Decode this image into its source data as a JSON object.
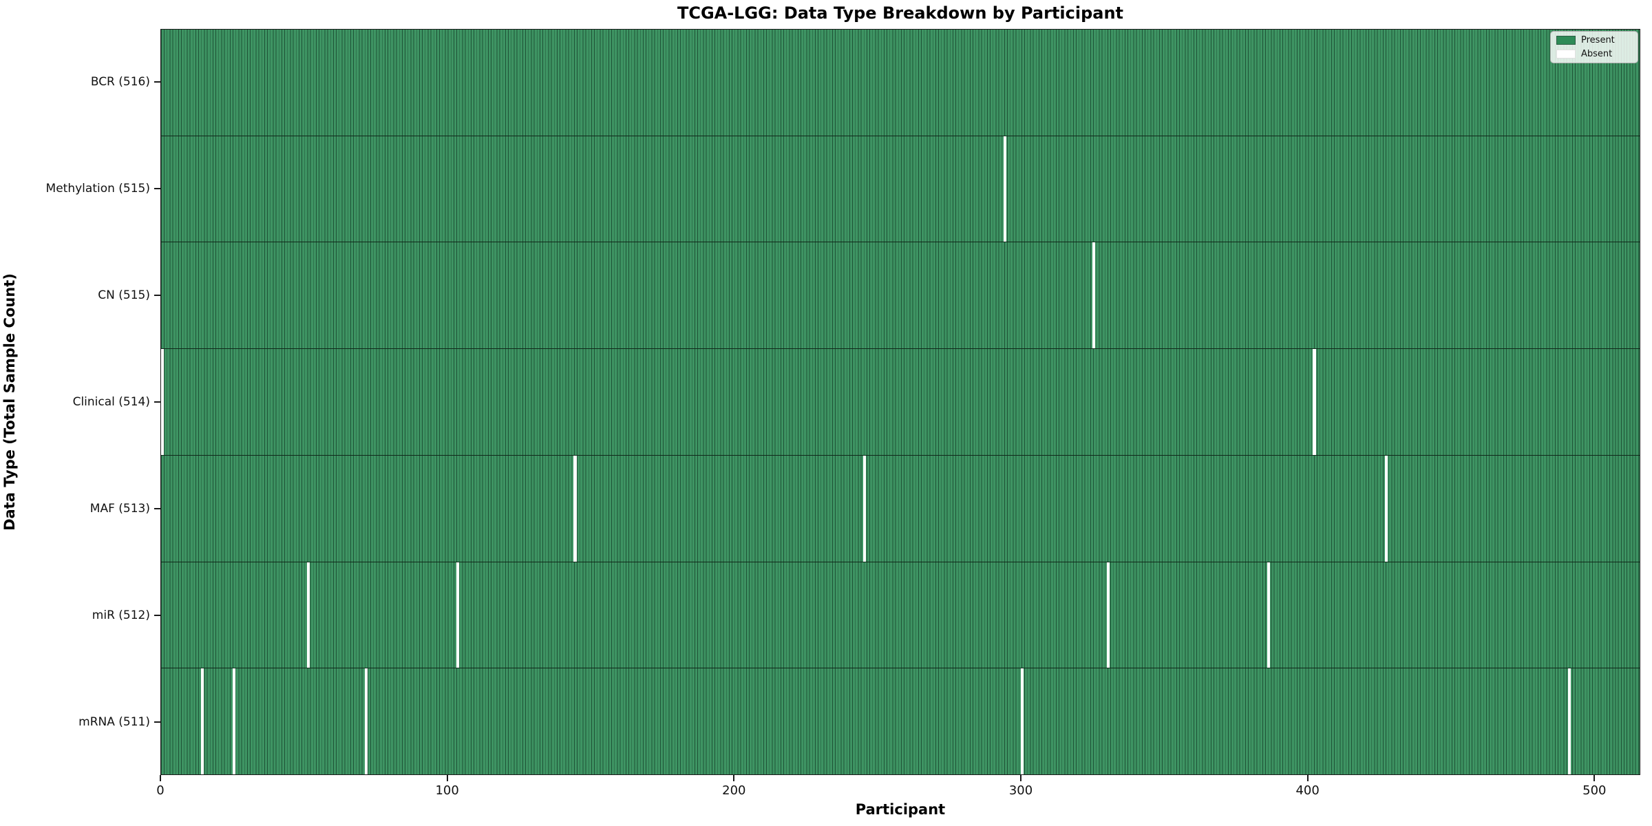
{
  "title": "TCGA-LGG: Data Type Breakdown by Participant",
  "axes": {
    "xlabel": "Participant",
    "ylabel": "Data Type (Total Sample Count)"
  },
  "legend": {
    "present_label": "Present",
    "absent_label": "Absent"
  },
  "colors": {
    "present_fill": "#3e9463",
    "present_edge": "#1e5236",
    "absent": "#ffffff",
    "legend_present_swatch": "#2e8b57",
    "row_border": "#10281a"
  },
  "chart_data": {
    "type": "heatmap",
    "title": "TCGA-LGG: Data Type Breakdown by Participant",
    "xlabel": "Participant",
    "ylabel": "Data Type (Total Sample Count)",
    "n_participants": 516,
    "xlim": [
      0,
      516
    ],
    "x_ticks": [
      0,
      100,
      200,
      300,
      400,
      500
    ],
    "grid": false,
    "legend_position": "upper right",
    "legend_entries": [
      {
        "label": "Present",
        "color": "#2e8b57"
      },
      {
        "label": "Absent",
        "color": "#ffffff"
      }
    ],
    "rows": [
      {
        "label": "BCR (516)",
        "data_type": "BCR",
        "total_samples": 516,
        "absent_participants": []
      },
      {
        "label": "Methylation (515)",
        "data_type": "Methylation",
        "total_samples": 515,
        "absent_participants": [
          294
        ]
      },
      {
        "label": "CN (515)",
        "data_type": "CN",
        "total_samples": 515,
        "absent_participants": [
          325
        ]
      },
      {
        "label": "Clinical (514)",
        "data_type": "Clinical",
        "total_samples": 514,
        "absent_participants": [
          0,
          402
        ]
      },
      {
        "label": "MAF (513)",
        "data_type": "MAF",
        "total_samples": 513,
        "absent_participants": [
          144,
          245,
          427
        ]
      },
      {
        "label": "miR (512)",
        "data_type": "miR",
        "total_samples": 512,
        "absent_participants": [
          51,
          103,
          330,
          386
        ]
      },
      {
        "label": "mRNA (511)",
        "data_type": "mRNA",
        "total_samples": 511,
        "absent_participants": [
          14,
          25,
          71,
          300,
          491
        ]
      }
    ]
  }
}
